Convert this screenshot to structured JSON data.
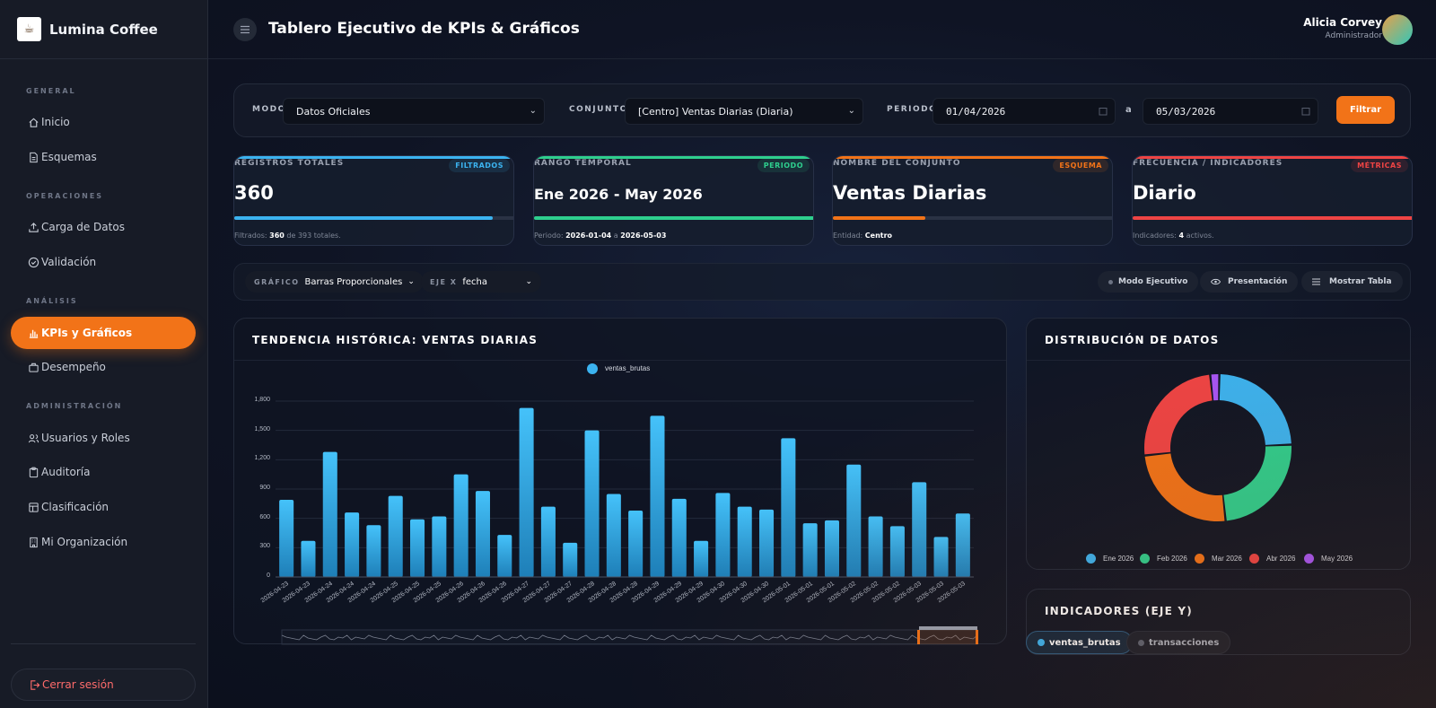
{
  "brand": {
    "name": "Lumina Coffee",
    "logo_text": "☕"
  },
  "sidebar": {
    "sections": [
      "GENERAL",
      "OPERACIONES",
      "ANÁLISIS",
      "ADMINISTRACIÓN"
    ],
    "items": [
      {
        "label": "Inicio",
        "icon": "home-icon"
      },
      {
        "label": "Esquemas",
        "icon": "document-icon"
      },
      {
        "label": "Carga de Datos",
        "icon": "upload-icon"
      },
      {
        "label": "Validación",
        "icon": "check-circle-icon"
      },
      {
        "label": "KPIs y Gráficos",
        "icon": "bar-chart-icon",
        "active": true
      },
      {
        "label": "Desempeño",
        "icon": "briefcase-icon"
      },
      {
        "label": "Usuarios y Roles",
        "icon": "users-icon"
      },
      {
        "label": "Auditoría",
        "icon": "clipboard-icon"
      },
      {
        "label": "Clasificación",
        "icon": "layout-icon"
      },
      {
        "label": "Mi Organización",
        "icon": "building-icon"
      }
    ],
    "logout": "Cerrar sesión"
  },
  "header": {
    "title": "Tablero Ejecutivo de KPIs & Gráficos",
    "user_name": "Alicia Corvey",
    "user_role": "Administrador"
  },
  "filters": {
    "modo_label": "MODO",
    "modo_value": "Datos Oficiales",
    "conjunto_label": "CONJUNTO",
    "conjunto_value": "[Centro] Ventas Diarias (Diaria)",
    "periodo_label": "PERIODO",
    "date_from": "01/04/2026",
    "separator": "a",
    "date_to": "05/03/2026",
    "button": "Filtrar"
  },
  "stats": [
    {
      "label": "REGISTROS TOTALES",
      "badge": "FILTRADOS",
      "value": "360",
      "fill": 0.92,
      "color": "#3bb3f0",
      "note_prefix": "Filtrados: ",
      "note_b1": "360",
      "note_mid": " de 393 totales.",
      "note_b2": ""
    },
    {
      "label": "RANGO TEMPORAL",
      "badge": "PERIODO",
      "value": "Ene 2026 - May 2026",
      "fill": 1.0,
      "color": "#2ecf8e",
      "note_prefix": "Periodo: ",
      "note_b1": "2026-01-04",
      "note_mid": " a ",
      "note_b2": "2026-05-03"
    },
    {
      "label": "NOMBRE DEL CONJUNTO",
      "badge": "ESQUEMA",
      "value": "Ventas Diarias",
      "fill": 0.33,
      "color": "#f27318",
      "note_prefix": "Entidad: ",
      "note_b1": "Centro",
      "note_mid": "",
      "note_b2": ""
    },
    {
      "label": "FRECUENCIA / INDICADORES",
      "badge": "MÉTRICAS",
      "value": "Diario",
      "fill": 1.0,
      "color": "#ef4444",
      "note_prefix": "Indicadores: ",
      "note_b1": "4",
      "note_mid": " activos.",
      "note_b2": ""
    }
  ],
  "toolbar": {
    "grafico_label": "GRÁFICO",
    "grafico_value": "Barras Proporcionales",
    "eje_label": "EJE X",
    "eje_value": "fecha",
    "modo_ejecutivo": "Modo Ejecutivo",
    "presentacion": "Presentación",
    "mostrar_tabla": "Mostrar Tabla"
  },
  "trend_panel": {
    "title": "TENDENCIA HISTÓRICA: VENTAS DIARIAS"
  },
  "dist_panel": {
    "title": "DISTRIBUCIÓN DE DATOS"
  },
  "indicators_panel": {
    "title": "INDICADORES (EJE Y)",
    "chips": [
      {
        "label": "ventas_brutas",
        "active": true
      },
      {
        "label": "transacciones",
        "active": false
      }
    ]
  },
  "chart_data": [
    {
      "type": "bar",
      "title": "TENDENCIA HISTÓRICA: VENTAS DIARIAS",
      "xlabel": "",
      "ylabel": "",
      "ylim": [
        0,
        1800
      ],
      "yticks": [
        "0",
        "300",
        "600",
        "900",
        "1,200",
        "1,500",
        "1,800"
      ],
      "grid": true,
      "legend": "top-center",
      "series_color": "#3bb3f0",
      "series": [
        {
          "name": "ventas_brutas",
          "values": [
            790,
            370,
            1280,
            660,
            530,
            830,
            590,
            620,
            1050,
            880,
            430,
            1730,
            720,
            350,
            1500,
            850,
            680,
            1650,
            800,
            370,
            860,
            720,
            690,
            1420,
            550,
            580,
            1150,
            620,
            520,
            970,
            410,
            650
          ]
        }
      ],
      "categories": [
        "2026-04-23",
        "2026-04-23",
        "2026-04-24",
        "2026-04-24",
        "2026-04-24",
        "2026-04-25",
        "2026-04-25",
        "2026-04-25",
        "2026-04-26",
        "2026-04-26",
        "2026-04-26",
        "2026-04-27",
        "2026-04-27",
        "2026-04-27",
        "2026-04-28",
        "2026-04-28",
        "2026-04-28",
        "2026-04-29",
        "2026-04-29",
        "2026-04-29",
        "2026-04-30",
        "2026-04-30",
        "2026-04-30",
        "2026-05-01",
        "2026-05-01",
        "2026-05-01",
        "2026-05-02",
        "2026-05-02",
        "2026-05-02",
        "2026-05-03",
        "2026-05-03",
        "2026-05-03"
      ]
    },
    {
      "type": "pie",
      "title": "DISTRIBUCIÓN DE DATOS",
      "legend": "bottom",
      "categories": [
        "Ene 2026",
        "Feb 2026",
        "Mar 2026",
        "Abr 2026",
        "May 2026"
      ],
      "values": [
        24,
        24,
        25,
        25,
        2
      ],
      "colors": [
        "#3bb3f0",
        "#2ecf8e",
        "#f27318",
        "#ef4444",
        "#a855f7"
      ]
    }
  ]
}
